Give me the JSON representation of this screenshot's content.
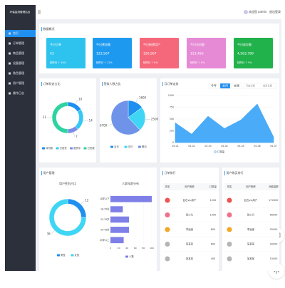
{
  "sidebar": {
    "title": "环保监测管理后台",
    "menu": [
      "首页",
      "订单管理",
      "商品管理",
      "设备管理",
      "角色管理",
      "用户管理",
      "操作日志"
    ]
  },
  "header": {
    "welcome": "欢迎您",
    "user": "admin",
    "logout": "退出登录"
  },
  "overview": {
    "title": "数据概况",
    "cards": [
      {
        "label": "今日订单",
        "value": "43",
        "note": "较昨日 ↑ 10%",
        "color": "#2ec3ee"
      },
      {
        "label": "今日营业额",
        "value": "123,567",
        "note": "较昨日 ↑ 12%",
        "color": "#1d9af0"
      },
      {
        "label": "今日新增用户",
        "value": "120,567",
        "note": "较昨日 ↑ 8%",
        "color": "#f5687b"
      },
      {
        "label": "今日访问量",
        "value": "123,456",
        "note": "较昨日 ↑ 6%",
        "color": "#e68ad6"
      },
      {
        "label": "今日成交额",
        "value": "4,563,789",
        "note": "较昨日 ↑ 9%",
        "color": "#22b24c"
      }
    ]
  },
  "order_status": {
    "title": "订单状态占比",
    "labels": [
      "待付款",
      "已发货",
      "退货中",
      "已完成"
    ],
    "values": [
      10,
      14,
      7,
      31
    ],
    "colors": [
      "#1f8ff0",
      "#36c8f4",
      "#7b8ce6",
      "#2dd3a0"
    ]
  },
  "sign_ratio": {
    "title": "签收人数占比",
    "labels": [
      "当日",
      "次日",
      "隔日"
    ],
    "values": [
      1600,
      2500,
      6700
    ],
    "colors": [
      "#1f8ff0",
      "#3fd6f5",
      "#6f93e8"
    ]
  },
  "monthly": {
    "title": "月订单走势",
    "tabs": [
      "今年",
      "本月",
      "本周"
    ],
    "active_tab": 1,
    "start": "开始日期",
    "end": "结束日期",
    "x": [
      "05-01",
      "05-02",
      "05-03",
      "05-04",
      "05-05",
      "05-06",
      "05-07"
    ],
    "values": [
      420,
      180,
      560,
      300,
      480,
      820,
      120
    ],
    "ylim": [
      0,
      1000
    ],
    "yticks": [
      0,
      250,
      500,
      750,
      1000
    ],
    "legend": "订单量",
    "color": "#36a3f7"
  },
  "users": {
    "title": "用户管理",
    "gender": {
      "title": "用户性别占比",
      "labels": [
        "男性",
        "女性"
      ],
      "values": [
        12,
        36
      ],
      "colors": [
        "#1f8ff0",
        "#3fd6f5"
      ]
    },
    "age": {
      "title": "人群年龄分布",
      "categories": [
        "18岁以下",
        "18-25岁",
        "25-35岁",
        "35-45岁",
        "45岁以上"
      ],
      "values": [
        100,
        30,
        45,
        45,
        32
      ],
      "xlim": [
        0,
        100
      ],
      "xticks": [
        0,
        20,
        40,
        60,
        80,
        100
      ],
      "legend": "人数",
      "color": "#7f7fe8"
    }
  },
  "order_rank": {
    "title": "订单排行",
    "columns": [
      "排名",
      "用户昵称",
      "订单量"
    ],
    "rows": [
      [
        "钻石vip用户",
        1200
      ],
      [
        "张小凡",
        1000
      ],
      [
        "李逍遥",
        800
      ],
      [
        "某某某",
        600
      ],
      [
        "某某某",
        400
      ]
    ]
  },
  "buy_rank": {
    "title": "用户购买排行",
    "columns": [
      "排名",
      "用户昵称",
      "消费金额"
    ],
    "rows": [
      [
        "钻石vip用户",
        272000
      ],
      [
        "张小凡",
        56000
      ],
      [
        "李逍遥",
        25000
      ],
      [
        "某某某",
        20000
      ],
      [
        "某某某",
        10000
      ]
    ]
  }
}
